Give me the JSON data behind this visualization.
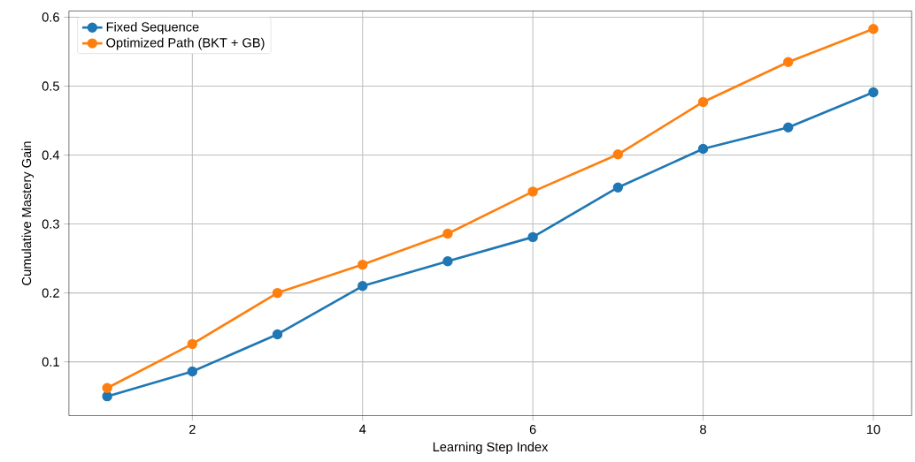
{
  "chart_data": {
    "type": "line",
    "xlabel": "Learning Step Index",
    "ylabel": "Cumulative Mastery Gain",
    "x": [
      1,
      2,
      3,
      4,
      5,
      6,
      7,
      8,
      9,
      10
    ],
    "series": [
      {
        "name": "Fixed Sequence",
        "color": "#1f77b4",
        "values": [
          0.05,
          0.086,
          0.14,
          0.21,
          0.246,
          0.281,
          0.353,
          0.409,
          0.44,
          0.491
        ]
      },
      {
        "name": "Optimized Path (BKT + GB)",
        "color": "#ff7f0e",
        "values": [
          0.062,
          0.126,
          0.2,
          0.241,
          0.286,
          0.347,
          0.401,
          0.477,
          0.535,
          0.583
        ]
      }
    ],
    "xlim": [
      0.55,
      10.45
    ],
    "ylim": [
      0.022,
      0.609
    ],
    "xticks": [
      2,
      4,
      6,
      8,
      10
    ],
    "yticks": [
      0.1,
      0.2,
      0.3,
      0.4,
      0.5,
      0.6
    ],
    "grid": true,
    "legend": "top left",
    "marker": "circle",
    "line_style": "solid"
  }
}
